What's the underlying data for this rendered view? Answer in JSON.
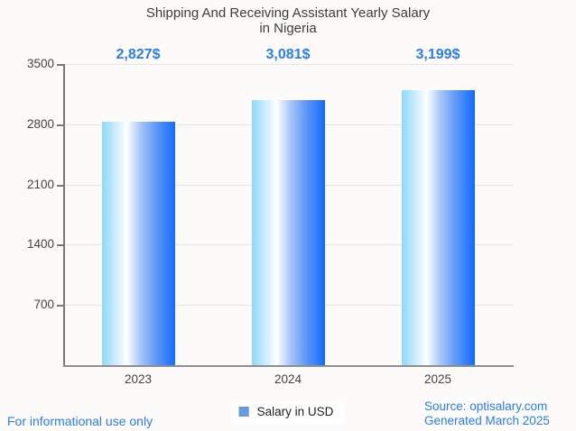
{
  "title": {
    "line1": "Shipping And Receiving Assistant Yearly Salary",
    "line2": "in Nigeria"
  },
  "chart_data": {
    "type": "bar",
    "title": "Shipping And Receiving Assistant Yearly Salary in Nigeria",
    "categories": [
      "2023",
      "2024",
      "2025"
    ],
    "values": [
      2827,
      3081,
      3199
    ],
    "value_labels": [
      "2,827$",
      "3,081$",
      "3,199$"
    ],
    "series_name": "Salary in USD",
    "xlabel": "",
    "ylabel": "",
    "ylim": [
      0,
      3500
    ],
    "yticks": [
      700,
      1400,
      2100,
      2800,
      3500
    ],
    "grid": true,
    "legend_position": "bottom",
    "bar_gradient": [
      "#8fd8fb",
      "#ffffff",
      "#146bfa"
    ]
  },
  "legend": {
    "label": "Salary in USD",
    "swatch_fill": "#5b9cf4",
    "swatch_border": "#87909b"
  },
  "footer": {
    "note": "For informational use only",
    "source": "Source: optisalary.com",
    "generated": "Generated March 2025"
  },
  "colors": {
    "accent_text": "#2b7de9",
    "title_text": "#3d3d3d",
    "axis_label": "#424242",
    "grid_line": "#e8e6e3",
    "axis_line": "#8f8f8f",
    "page_background": "#fcfbf9"
  }
}
